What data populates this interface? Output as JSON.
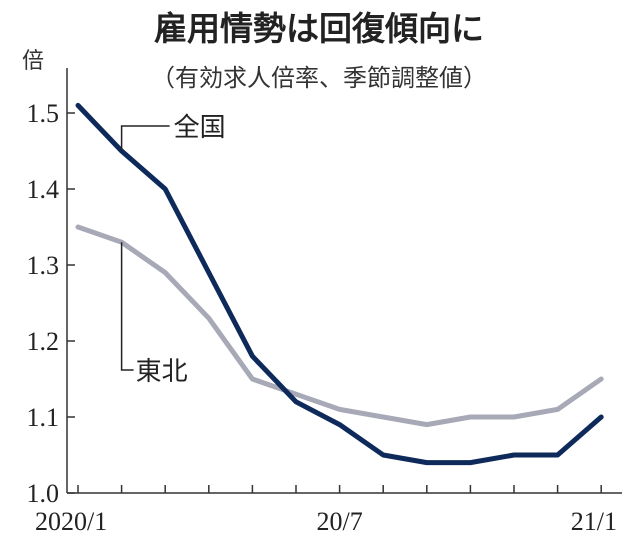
{
  "chart_data": {
    "type": "line",
    "title": "雇用情勢は回復傾向に",
    "subtitle": "（有効求人倍率、季節調整値）",
    "ylabel": "倍",
    "xlabel": "",
    "ylim": [
      1.0,
      1.55
    ],
    "yticks": [
      "1.0",
      "1.1",
      "1.2",
      "1.3",
      "1.4",
      "1.5"
    ],
    "x": [
      "2020/1",
      "2020/2",
      "2020/3",
      "2020/4",
      "2020/5",
      "2020/6",
      "2020/7",
      "2020/8",
      "2020/9",
      "2020/10",
      "2020/11",
      "2020/12",
      "2021/1"
    ],
    "xtick_labels": [
      {
        "index": 0,
        "label": "2020/1"
      },
      {
        "index": 6,
        "label": "20/7"
      },
      {
        "index": 12,
        "label": "21/1"
      }
    ],
    "grid": false,
    "series": [
      {
        "name": "全国",
        "color": "#0d2a5a",
        "values": [
          1.51,
          1.45,
          1.4,
          1.29,
          1.18,
          1.12,
          1.09,
          1.05,
          1.04,
          1.04,
          1.05,
          1.05,
          1.1
        ]
      },
      {
        "name": "東北",
        "color": "#a8a9b7",
        "values": [
          1.35,
          1.33,
          1.29,
          1.23,
          1.15,
          1.13,
          1.11,
          1.1,
          1.09,
          1.1,
          1.1,
          1.11,
          1.15
        ]
      }
    ]
  }
}
